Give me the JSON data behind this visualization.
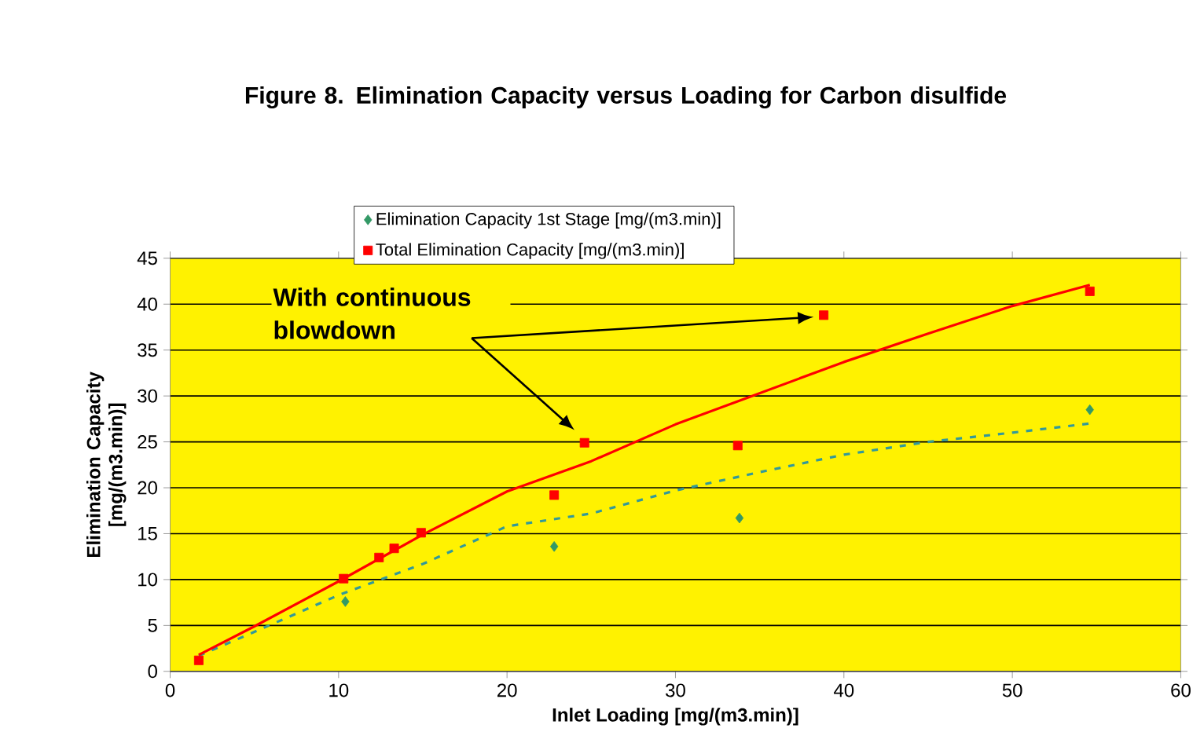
{
  "chart_data": {
    "type": "scatter",
    "title": "Figure 8. Elimination Capacity versus Loading for Carbon disulfide",
    "xlabel": "Inlet Loading [mg/(m3.min)]",
    "ylabel": "Elimination Capacity [mg/(m3.min)]",
    "xlim": [
      0,
      60
    ],
    "xticks": [
      0,
      10,
      20,
      30,
      40,
      50,
      60
    ],
    "ylim": [
      0,
      45
    ],
    "yticks": [
      0,
      5,
      10,
      15,
      20,
      25,
      30,
      35,
      40,
      45
    ],
    "grid": "y",
    "legend": "top",
    "series": [
      {
        "name": "Elimination Capacity 1st Stage [mg/(m3.min)]",
        "color": "#339966",
        "marker": "diamond",
        "x": [
          10.4,
          22.8,
          33.8,
          54.6
        ],
        "values": [
          7.6,
          13.6,
          16.7,
          28.5
        ]
      },
      {
        "name": "Total Elimination Capacity [mg/(m3.min)]",
        "color": "#ff0000",
        "marker": "square",
        "x": [
          1.7,
          10.3,
          12.4,
          13.3,
          14.9,
          22.8,
          24.6,
          33.7,
          38.8,
          54.6
        ],
        "values": [
          1.2,
          10.1,
          12.4,
          13.4,
          15.1,
          19.2,
          24.9,
          24.6,
          38.8,
          41.4
        ]
      },
      {
        "type": "line",
        "color": "#339999",
        "line_style": "dashed",
        "marker": "none",
        "x": [
          1.7,
          5,
          10,
          15,
          20,
          25,
          30,
          35,
          40,
          45,
          50,
          54.6
        ],
        "values": [
          1.7,
          4.3,
          8.3,
          11.7,
          15.8,
          17.2,
          19.7,
          21.7,
          23.6,
          25.0,
          26.0,
          27.0
        ]
      },
      {
        "type": "line",
        "color": "#ff0000",
        "line_style": "solid",
        "marker": "none",
        "x": [
          1.7,
          5,
          10,
          15,
          20,
          25,
          30,
          35,
          40,
          45,
          50,
          54.6
        ],
        "values": [
          1.8,
          4.9,
          9.8,
          14.9,
          19.6,
          22.9,
          26.9,
          30.3,
          33.7,
          36.8,
          39.8,
          42.1
        ]
      }
    ],
    "annotations": [
      "With continuous blowdown"
    ]
  }
}
